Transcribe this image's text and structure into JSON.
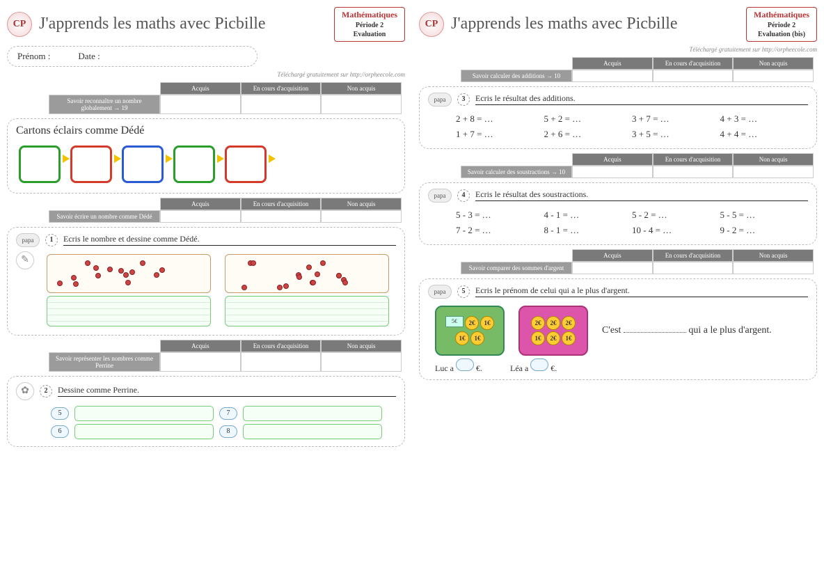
{
  "left": {
    "badge": "CP",
    "title": "J'apprends les maths avec Picbille",
    "subject": {
      "line1": "Mathématiques",
      "line2": "Période 2",
      "line3": "Evaluation"
    },
    "name_label": "Prénom :",
    "date_label": "Date :",
    "download": "Téléchargé gratuitement sur http://orpheecole.com",
    "rubric_headers": [
      "Acquis",
      "En cours d'acquisition",
      "Non acquis"
    ],
    "rubric1": "Savoir reconnaître un nombre globalement → 19",
    "section1_title": "Cartons éclairs comme Dédé",
    "flash_colors": [
      "#2a9d2a",
      "#d43a2a",
      "#2a5bd4",
      "#2a9d2a",
      "#d43a2a"
    ],
    "rubric2": "Savoir écrire un nombre comme Dédé",
    "ex1": {
      "badge": "papa",
      "num": "1",
      "instr": "Ecris le nombre et dessine comme Dédé."
    },
    "rubric3": "Savoir représenter les nombres comme Perrine",
    "ex2": {
      "num": "2",
      "instr": "Dessine comme Perrine.",
      "nums": [
        "5",
        "7",
        "6",
        "8"
      ]
    }
  },
  "right": {
    "badge": "CP",
    "title": "J'apprends les maths avec Picbille",
    "subject": {
      "line1": "Mathématiques",
      "line2": "Période 2",
      "line3": "Evaluation (bis)"
    },
    "download": "Téléchargé gratuitement sur http://orpheecole.com",
    "rubric_headers": [
      "Acquis",
      "En cours d'acquisition",
      "Non acquis"
    ],
    "rubric1": "Savoir calculer des additions → 10",
    "ex3": {
      "badge": "papa",
      "num": "3",
      "instr": "Ecris le résultat des additions.",
      "eqs": [
        "2 + 8 = …",
        "5 + 2 = …",
        "3 + 7 = …",
        "4 + 3 = …",
        "1 + 7 = …",
        "2 + 6 = …",
        "3 + 5 = …",
        "4 + 4 = …"
      ]
    },
    "rubric2": "Savoir calculer des soustractions → 10",
    "ex4": {
      "badge": "papa",
      "num": "4",
      "instr": "Ecris le résultat des soustractions.",
      "eqs": [
        "5 - 3 = …",
        "4 - 1 = …",
        "5 - 2 = …",
        "5 - 5 = …",
        "7 - 2 = …",
        "8 - 1 = …",
        "10 - 4 = …",
        "9 - 2 = …"
      ]
    },
    "rubric3": "Savoir comparer des sommes d'argent",
    "ex5": {
      "badge": "papa",
      "num": "5",
      "instr": "Ecris le prénom de celui qui a le plus d'argent.",
      "wallet1": [
        "5€",
        "2€",
        "1€",
        "1€",
        "1€"
      ],
      "wallet2": [
        "2€",
        "2€",
        "2€",
        "1€",
        "2€",
        "1€"
      ],
      "sentence_pre": "C'est ",
      "sentence_post": " qui a le plus d'argent.",
      "luc": "Luc a",
      "lea": "Léa a",
      "euro": "€."
    }
  }
}
